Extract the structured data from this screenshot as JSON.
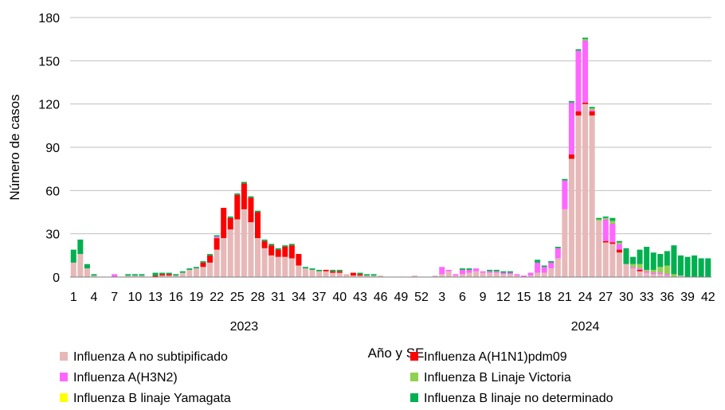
{
  "chart_data": {
    "type": "bar",
    "stacked": true,
    "title": "",
    "xlabel": "Año y SE",
    "ylabel": "Número de casos",
    "ylim": [
      0,
      180
    ],
    "yticks": [
      0,
      30,
      60,
      90,
      120,
      150,
      180
    ],
    "grid": true,
    "legend_position": "bottom",
    "year_labels": [
      {
        "label": "2023",
        "center_index": 25
      },
      {
        "label": "2024",
        "center_index": 75
      }
    ],
    "x_tick_labels": [
      {
        "i": 0,
        "t": "1"
      },
      {
        "i": 3,
        "t": "4"
      },
      {
        "i": 6,
        "t": "7"
      },
      {
        "i": 9,
        "t": "10"
      },
      {
        "i": 12,
        "t": "13"
      },
      {
        "i": 15,
        "t": "16"
      },
      {
        "i": 18,
        "t": "19"
      },
      {
        "i": 21,
        "t": "22"
      },
      {
        "i": 24,
        "t": "25"
      },
      {
        "i": 27,
        "t": "28"
      },
      {
        "i": 30,
        "t": "31"
      },
      {
        "i": 33,
        "t": "34"
      },
      {
        "i": 36,
        "t": "37"
      },
      {
        "i": 39,
        "t": "40"
      },
      {
        "i": 42,
        "t": "43"
      },
      {
        "i": 45,
        "t": "46"
      },
      {
        "i": 48,
        "t": "49"
      },
      {
        "i": 51,
        "t": "52"
      },
      {
        "i": 54,
        "t": "3"
      },
      {
        "i": 57,
        "t": "6"
      },
      {
        "i": 60,
        "t": "9"
      },
      {
        "i": 63,
        "t": "12"
      },
      {
        "i": 66,
        "t": "15"
      },
      {
        "i": 69,
        "t": "18"
      },
      {
        "i": 72,
        "t": "21"
      },
      {
        "i": 75,
        "t": "24"
      },
      {
        "i": 78,
        "t": "27"
      },
      {
        "i": 81,
        "t": "30"
      },
      {
        "i": 84,
        "t": "33"
      },
      {
        "i": 87,
        "t": "36"
      },
      {
        "i": 90,
        "t": "39"
      },
      {
        "i": 93,
        "t": "42"
      }
    ],
    "num_bars": 94,
    "series": [
      {
        "name": "Influenza A no subtipificado",
        "color": "#E6B9B8",
        "values": [
          10,
          16,
          6,
          1,
          0,
          0,
          0,
          0,
          1,
          1,
          1,
          0,
          0,
          1,
          1,
          1,
          3,
          5,
          6,
          7,
          10,
          19,
          27,
          33,
          40,
          47,
          38,
          27,
          20,
          15,
          14,
          14,
          13,
          8,
          6,
          5,
          4,
          4,
          3,
          3,
          2,
          1,
          1,
          1,
          1,
          1,
          0,
          0,
          0,
          0,
          1,
          0,
          0,
          1,
          2,
          4,
          1,
          2,
          3,
          4,
          3,
          3,
          3,
          2,
          2,
          1,
          0,
          1,
          3,
          3,
          6,
          13,
          47,
          82,
          112,
          120,
          112,
          39,
          24,
          23,
          17,
          9,
          6,
          4,
          3,
          2,
          2,
          1,
          0,
          1,
          0,
          0,
          0,
          0
        ]
      },
      {
        "name": "Influenza A(H1N1)pdm09",
        "color": "#FF0000",
        "values": [
          0,
          0,
          0,
          0,
          0,
          0,
          0,
          0,
          0,
          0,
          0,
          0,
          1,
          1,
          1,
          0,
          0,
          0,
          0,
          3,
          5,
          8,
          21,
          8,
          17,
          18,
          17,
          18,
          5,
          7,
          5,
          7,
          9,
          8,
          0,
          0,
          0,
          1,
          1,
          1,
          0,
          2,
          1,
          0,
          0,
          0,
          0,
          0,
          0,
          0,
          0,
          0,
          0,
          0,
          0,
          0,
          0,
          0,
          0,
          0,
          0,
          0,
          0,
          0,
          0,
          0,
          0,
          0,
          0,
          0,
          0,
          0,
          0,
          3,
          3,
          1,
          3,
          0,
          1,
          1,
          2,
          0,
          0,
          1,
          0,
          0,
          0,
          0,
          0,
          0,
          0,
          0,
          0,
          0
        ]
      },
      {
        "name": "Influenza A(H3N2)",
        "color": "#FF66FF",
        "values": [
          0,
          0,
          0,
          0,
          0,
          0,
          2,
          0,
          0,
          0,
          0,
          0,
          0,
          0,
          0,
          0,
          0,
          0,
          0,
          0,
          0,
          1,
          0,
          0,
          0,
          0,
          0,
          0,
          0,
          0,
          0,
          0,
          0,
          0,
          0,
          0,
          0,
          0,
          0,
          0,
          0,
          0,
          0,
          0,
          0,
          0,
          0,
          0,
          0,
          0,
          0,
          0,
          0,
          0,
          5,
          1,
          1,
          3,
          2,
          2,
          1,
          1,
          1,
          1,
          1,
          1,
          1,
          2,
          7,
          4,
          4,
          7,
          20,
          36,
          42,
          43,
          1,
          0,
          15,
          13,
          4,
          0,
          1,
          1,
          1,
          1,
          1,
          1,
          0,
          0,
          0,
          0,
          0,
          0
        ]
      },
      {
        "name": "Influenza B Linaje Victoria",
        "color": "#92D050",
        "values": [
          0,
          0,
          0,
          0,
          0,
          0,
          0,
          0,
          0,
          0,
          0,
          0,
          0,
          0,
          0,
          0,
          0,
          0,
          0,
          0,
          0,
          0,
          0,
          0,
          0,
          0,
          0,
          0,
          0,
          0,
          0,
          0,
          0,
          0,
          0,
          0,
          0,
          0,
          0,
          0,
          0,
          0,
          0,
          0,
          0,
          0,
          0,
          0,
          0,
          0,
          0,
          0,
          0,
          0,
          0,
          0,
          0,
          0,
          0,
          0,
          0,
          0,
          0,
          0,
          0,
          0,
          0,
          0,
          0,
          0,
          0,
          0,
          0,
          0,
          0,
          1,
          1,
          1,
          1,
          2,
          1,
          0,
          2,
          3,
          1,
          2,
          4,
          6,
          2,
          0,
          0,
          0,
          0,
          0
        ]
      },
      {
        "name": "Influenza B linaje Yamagata",
        "color": "#FFFF00",
        "values": [
          0,
          0,
          0,
          0,
          0,
          0,
          0,
          0,
          0,
          0,
          0,
          0,
          0,
          0,
          0,
          0,
          0,
          0,
          0,
          0,
          0,
          0,
          0,
          0,
          0,
          0,
          0,
          0,
          0,
          0,
          0,
          0,
          0,
          0,
          0,
          0,
          0,
          0,
          0,
          0,
          0,
          0,
          0,
          0,
          0,
          0,
          0,
          0,
          0,
          0,
          0,
          0,
          0,
          0,
          0,
          0,
          0,
          0,
          0,
          0,
          0,
          0,
          0,
          0,
          0,
          0,
          0,
          0,
          0,
          0,
          0,
          0,
          0,
          0,
          0,
          0,
          0,
          0,
          0,
          0,
          0,
          0,
          0,
          0,
          0,
          0,
          0,
          0,
          0,
          0,
          0,
          0,
          0,
          0
        ]
      },
      {
        "name": "Influenza B linaje no determinado",
        "color": "#00B050",
        "values": [
          9,
          10,
          3,
          1,
          0,
          0,
          0,
          0,
          1,
          1,
          1,
          0,
          2,
          1,
          1,
          1,
          1,
          1,
          1,
          1,
          1,
          1,
          0,
          1,
          1,
          1,
          1,
          1,
          1,
          1,
          1,
          1,
          1,
          0,
          1,
          1,
          1,
          0,
          1,
          1,
          0,
          0,
          1,
          1,
          1,
          0,
          0,
          0,
          0,
          0,
          0,
          0,
          0,
          0,
          0,
          0,
          0,
          1,
          1,
          0,
          0,
          1,
          1,
          1,
          1,
          0,
          0,
          0,
          2,
          1,
          1,
          1,
          1,
          1,
          1,
          1,
          1,
          1,
          1,
          2,
          1,
          11,
          5,
          10,
          16,
          12,
          9,
          10,
          20,
          14,
          14,
          15,
          13,
          13
        ]
      }
    ]
  }
}
